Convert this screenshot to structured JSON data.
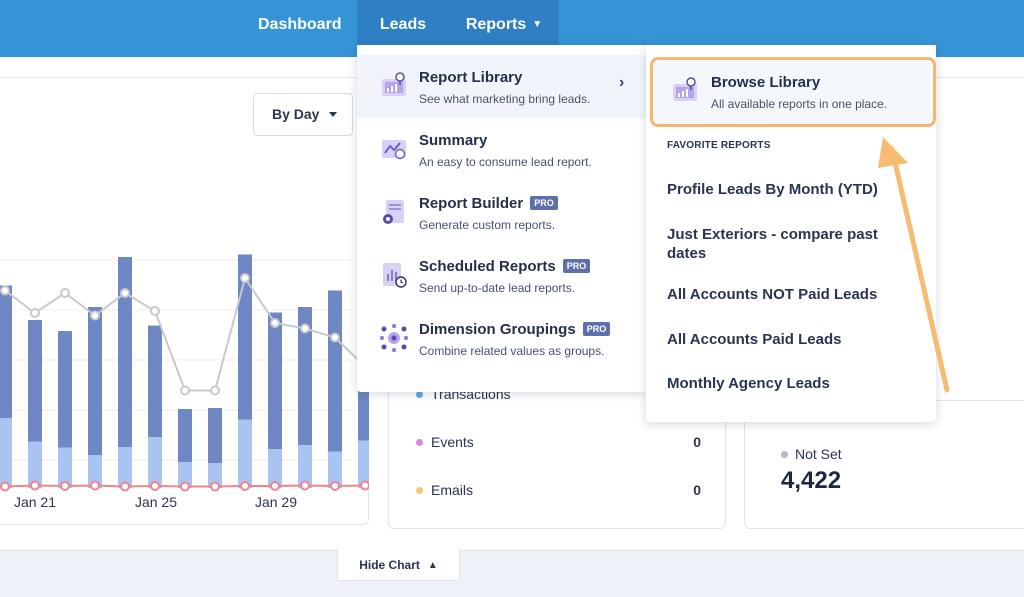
{
  "nav": {
    "dashboard": "Dashboard",
    "leads": "Leads",
    "reports": "Reports",
    "reports_chevron": "⌄"
  },
  "controls": {
    "by_day": "By Day",
    "hide_chart": "Hide Chart"
  },
  "chart_data": {
    "type": "bar",
    "x_tick_labels": [
      "Jan 21",
      "Jan 25",
      "Jan 29"
    ],
    "series": [
      {
        "values": [
          140,
          93,
          81,
          66,
          82,
          102,
          52,
          50,
          137,
          78,
          86,
          73,
          95
        ],
        "color": "#a9c4f1"
      },
      {
        "values": [
          265,
          243,
          233,
          296,
          380,
          223,
          106,
          110,
          330,
          273,
          276,
          322,
          258
        ],
        "color": "#6f88c3"
      }
    ],
    "line_series": [
      {
        "values": [
          395,
          350,
          390,
          345,
          390,
          354,
          195,
          195,
          420,
          330,
          319,
          301,
          243
        ],
        "color": "#c8c9cd"
      },
      {
        "values": [
          3,
          5,
          4,
          5,
          3,
          4,
          3,
          3,
          4,
          4,
          5,
          4,
          5
        ],
        "color": "#f0848c"
      }
    ]
  },
  "stats": {
    "transactions_label": "Transactions",
    "events_label": "Events",
    "events_value": "0",
    "emails_label": "Emails",
    "emails_value": "0",
    "colors": {
      "transactions": "#63a9e9",
      "events": "#d78be0",
      "emails": "#f5c67d"
    }
  },
  "notset": {
    "label": "Not Set",
    "value": "4,422"
  },
  "reports_menu": {
    "items": [
      {
        "title": "Report Library",
        "desc": "See what marketing bring leads.",
        "icon": "report-library-icon"
      },
      {
        "title": "Summary",
        "desc": "An easy to consume lead report.",
        "icon": "summary-icon"
      },
      {
        "title": "Report Builder",
        "desc": "Generate custom reports.",
        "pro": "PRO",
        "icon": "report-builder-icon"
      },
      {
        "title": "Scheduled Reports",
        "desc": "Send up-to-date lead reports.",
        "pro": "PRO",
        "icon": "scheduled-reports-icon"
      },
      {
        "title": "Dimension Groupings",
        "desc": "Combine related values as groups.",
        "pro": "PRO",
        "icon": "dimension-groupings-icon"
      }
    ],
    "arrow": "›"
  },
  "library_menu": {
    "browse_title": "Browse Library",
    "browse_desc": "All available reports in one place.",
    "favorites_heading": "FAVORITE REPORTS",
    "favorites": [
      "Profile Leads By Month (YTD)",
      "Just Exteriors - compare past dates",
      "All Accounts NOT Paid Leads",
      "All Accounts Paid Leads",
      "Monthly Agency Leads"
    ],
    "highlight_color": "#f2b770"
  }
}
